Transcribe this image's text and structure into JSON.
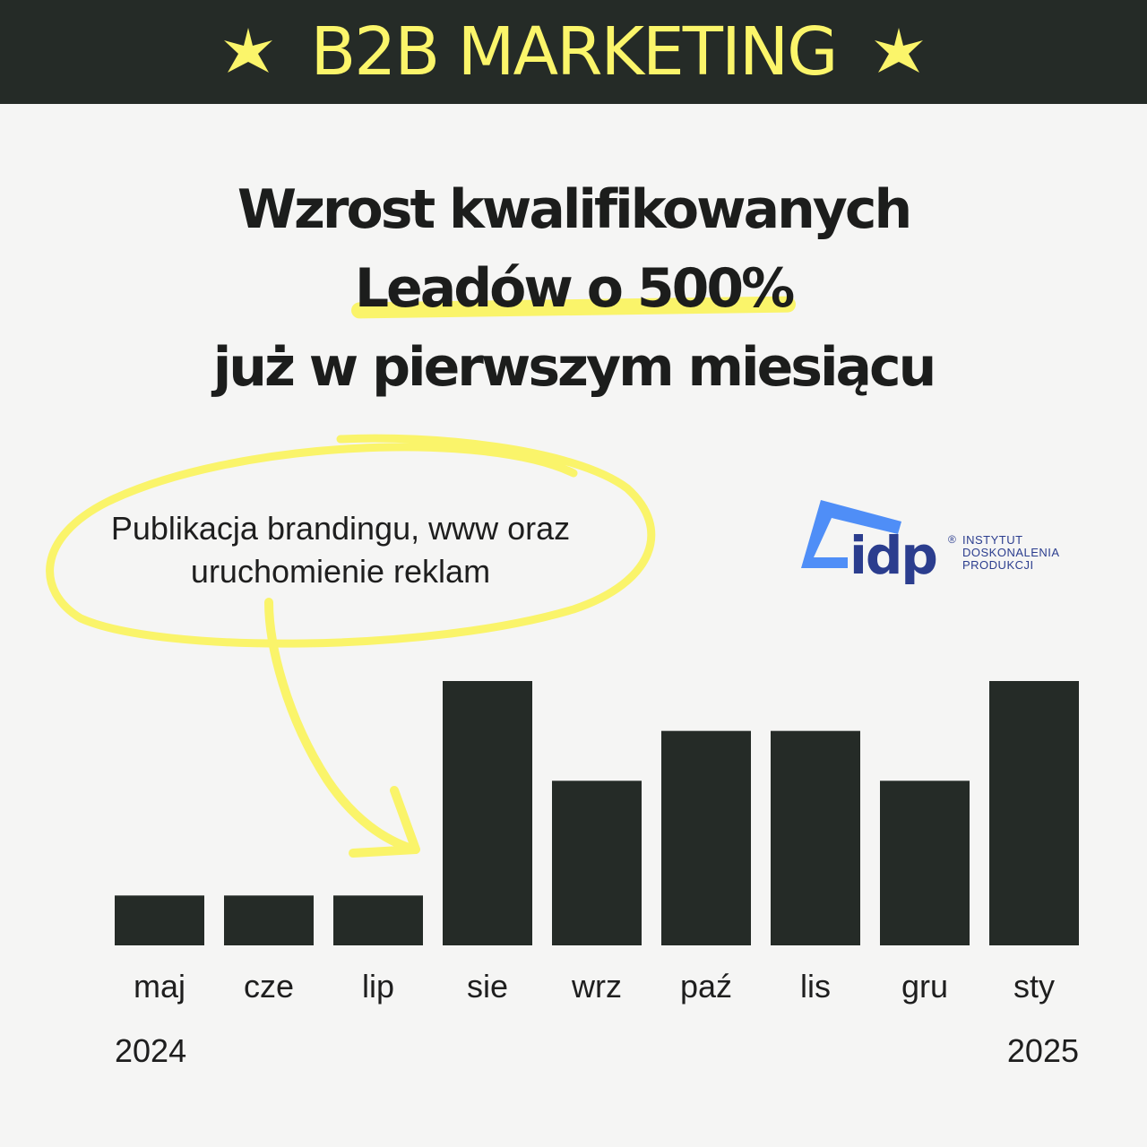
{
  "banner": {
    "title": "B2B MARKETING",
    "star_icon": "star-icon"
  },
  "headline": {
    "line1": "Wzrost kwalifikowanych",
    "line2": "Leadów o 500%",
    "line3": "już w pierwszym miesiącu"
  },
  "annotation": {
    "text_line1": "Publikacja brandingu, www oraz",
    "text_line2": "uruchomienie reklam"
  },
  "logo": {
    "mark": "idp",
    "registered": "®",
    "name_lines": [
      "INSTYTUT",
      "DOSKONALENIA",
      "PRODUKCJI"
    ]
  },
  "colors": {
    "banner_bg": "#252b27",
    "accent_yellow": "#fbf56a",
    "bar_color": "#252b27",
    "background": "#f5f5f4",
    "logo_blue": "#2b3d8e",
    "logo_light_blue": "#4f8ef7"
  },
  "chart_data": {
    "type": "bar",
    "categories": [
      "maj",
      "cze",
      "lip",
      "sie",
      "wrz",
      "paź",
      "lis",
      "gru",
      "sty"
    ],
    "values": [
      1,
      1,
      1,
      5.3,
      3.3,
      4.3,
      4.3,
      3.3,
      5.3
    ],
    "year_labels": [
      {
        "category": "maj",
        "text": "2024"
      },
      {
        "category": "sty",
        "text": "2025"
      }
    ],
    "ylim": [
      0,
      5.3
    ],
    "grid": false,
    "axes_visible": false
  }
}
